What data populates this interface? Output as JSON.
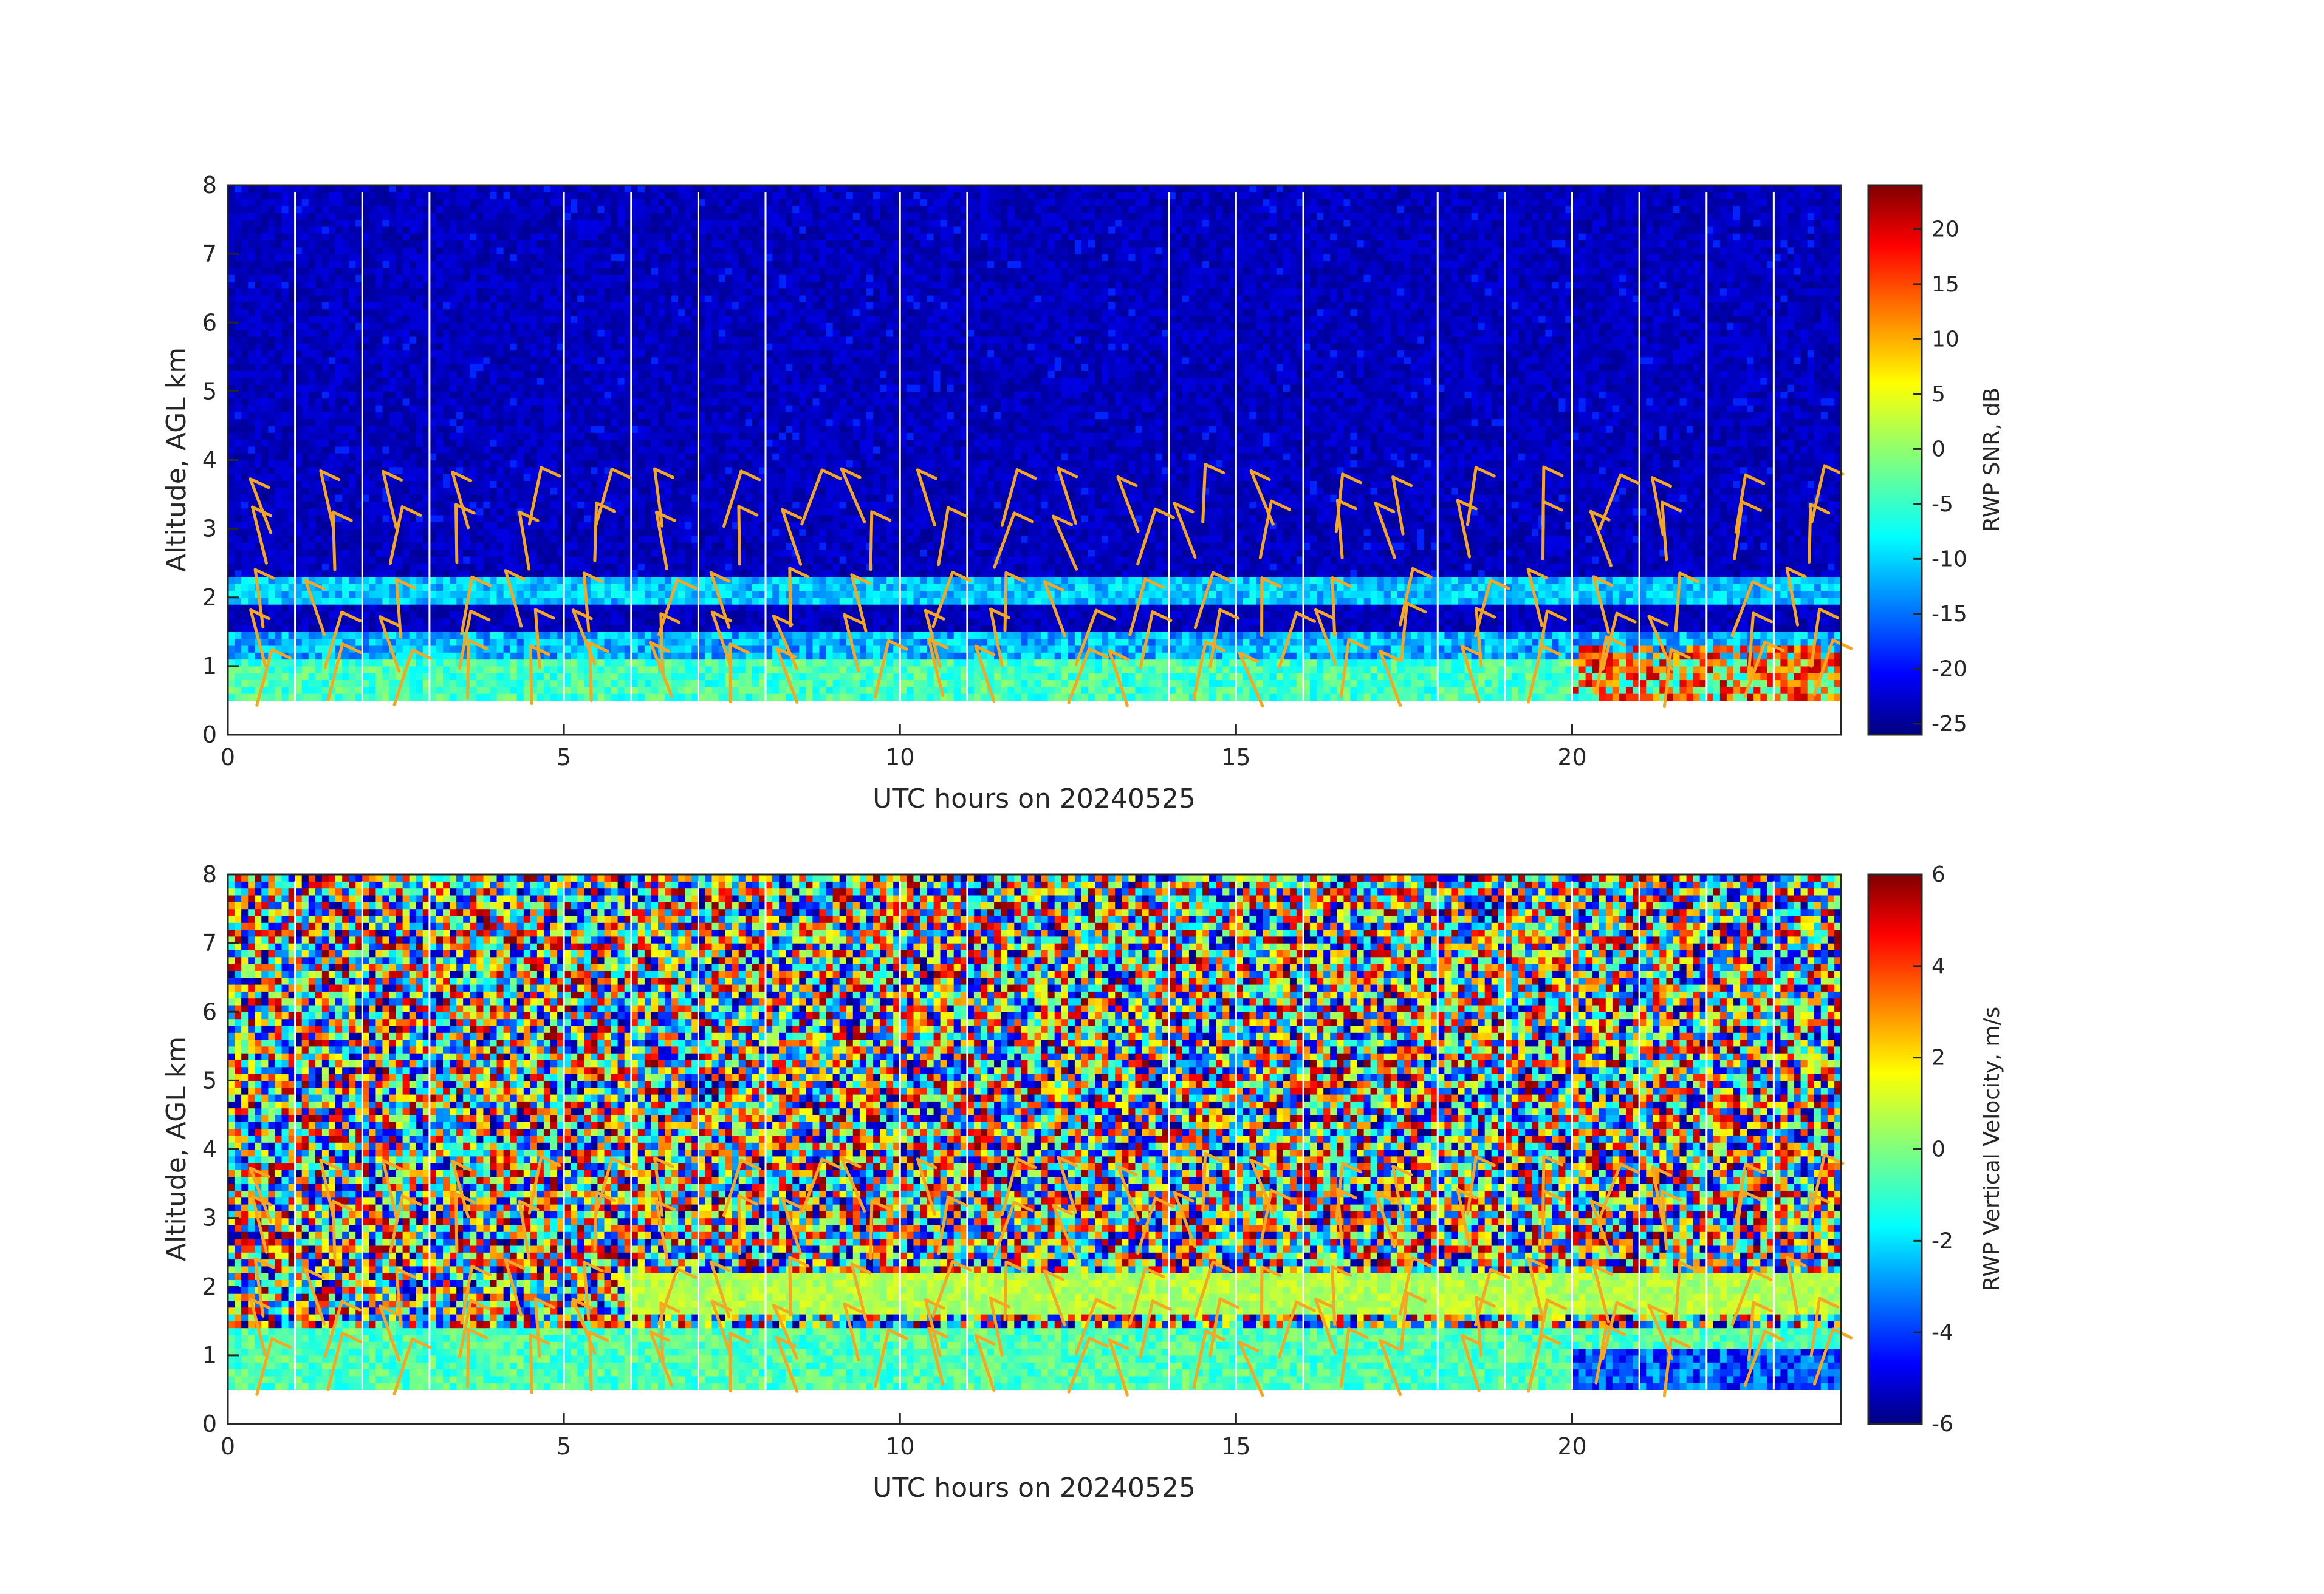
{
  "chart_data": [
    {
      "type": "heatmap",
      "xlabel": "UTC hours on 20240525",
      "ylabel": "Altitude, AGL km",
      "xlim": [
        0,
        24
      ],
      "ylim": [
        0,
        8
      ],
      "xticks": [
        "0",
        "5",
        "10",
        "15",
        "20"
      ],
      "yticks": [
        "0",
        "1",
        "2",
        "3",
        "4",
        "5",
        "6",
        "7",
        "8"
      ],
      "colorbar": {
        "label": "RWP SNR, dB",
        "range": [
          -26,
          24
        ],
        "ticks": [
          "20",
          "15",
          "10",
          "5",
          "0",
          "-5",
          "-10",
          "-15",
          "-20",
          "-25"
        ],
        "colormap": "jet"
      },
      "data_range_km": [
        0.5,
        7.9
      ],
      "hour_gap_lines": [
        1,
        2,
        3,
        5,
        6,
        7,
        8,
        10,
        11,
        14,
        15,
        16,
        18,
        19,
        20,
        21,
        22,
        23
      ],
      "layers": [
        {
          "name": "low layer",
          "from_km": 0.5,
          "to_km": 1.0,
          "snr_db": -5
        },
        {
          "name": "mid layer",
          "from_km": 1.0,
          "to_km": 1.5,
          "snr_db": -12
        },
        {
          "name": "upper boundary layer",
          "from_km": 1.9,
          "to_km": 2.3,
          "snr_db": -10
        },
        {
          "name": "strong echo 20-24 UTC",
          "from_km": 0.5,
          "to_km": 1.2,
          "snr_db": 18
        },
        {
          "name": "background noise",
          "from_km": 2.3,
          "to_km": 7.9,
          "snr_db": -25
        }
      ],
      "wind_barbs": {
        "color": "#f5a623",
        "shown": true
      }
    },
    {
      "type": "heatmap",
      "xlabel": "UTC hours on 20240525",
      "ylabel": "Altitude, AGL km",
      "xlim": [
        0,
        24
      ],
      "ylim": [
        0,
        8
      ],
      "xticks": [
        "0",
        "5",
        "10",
        "15",
        "20"
      ],
      "yticks": [
        "0",
        "1",
        "2",
        "3",
        "4",
        "5",
        "6",
        "7",
        "8"
      ],
      "colorbar": {
        "label": "RWP Vertical Velocity, m/s",
        "range": [
          -6,
          6
        ],
        "ticks": [
          "6",
          "4",
          "2",
          "0",
          "-2",
          "-4",
          "-6"
        ],
        "colormap": "jet"
      },
      "data_range_km": [
        0.5,
        7.9
      ],
      "hour_gap_lines": [
        1,
        2,
        3,
        5,
        6,
        7,
        8,
        10,
        11,
        14,
        15,
        16,
        18,
        19,
        20,
        21,
        22,
        23
      ],
      "layers": [
        {
          "name": "boundary layer",
          "from_km": 0.5,
          "to_km": 1.4,
          "w_ms": -0.8
        },
        {
          "name": "upper boundary layer",
          "from_km": 1.6,
          "to_km": 2.2,
          "w_ms": 0.5
        },
        {
          "name": "downdraft 20-24 UTC",
          "from_km": 0.5,
          "to_km": 1.0,
          "w_ms": -4
        },
        {
          "name": "free troposphere noise",
          "from_km": 2.2,
          "to_km": 7.9,
          "w_ms": "random -6..6"
        }
      ],
      "wind_barbs": {
        "color": "#f5a623",
        "shown": true
      }
    }
  ]
}
